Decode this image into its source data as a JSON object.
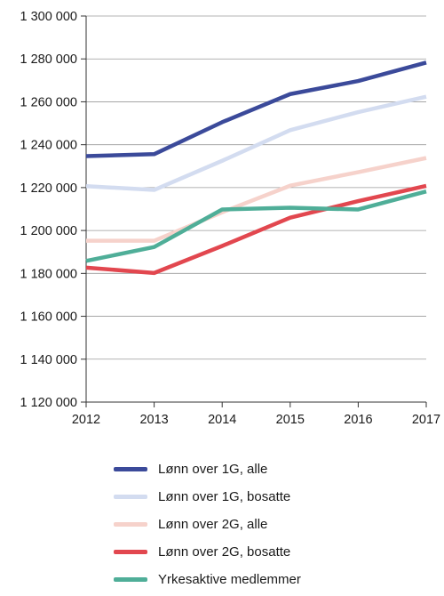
{
  "chart_data": {
    "type": "line",
    "x": [
      "2012",
      "2013",
      "2014",
      "2015",
      "2016",
      "2017"
    ],
    "ylim": [
      1120000,
      1300000
    ],
    "y_ticks": [
      1120000,
      1140000,
      1160000,
      1180000,
      1200000,
      1220000,
      1240000,
      1260000,
      1280000,
      1300000
    ],
    "y_tick_labels": [
      "1 120 000",
      "1 140 000",
      "1 160 000",
      "1 180 000",
      "1 200 000",
      "1 220 000",
      "1 240 000",
      "1 260 000",
      "1 280 000",
      "1 300 000"
    ],
    "grid": "horizontal",
    "legend_position": "bottom",
    "series": [
      {
        "name": "Lønn over 1G, alle",
        "color": "#3b4a9a",
        "values": [
          1234700,
          1235600,
          1250500,
          1263600,
          1269700,
          1278300
        ]
      },
      {
        "name": "Lønn over 1G, bosatte",
        "color": "#d3dcf0",
        "values": [
          1220700,
          1218900,
          1232500,
          1246800,
          1255200,
          1262400
        ]
      },
      {
        "name": "Lønn over 2G, alle",
        "color": "#f6d2cb",
        "values": [
          1195200,
          1195200,
          1208500,
          1220900,
          1227200,
          1233800
        ]
      },
      {
        "name": "Lønn over 2G, bosatte",
        "color": "#e2474f",
        "values": [
          1182700,
          1180200,
          1192800,
          1206000,
          1213700,
          1220800
        ]
      },
      {
        "name": "Yrkesaktive medlemmer",
        "color": "#4fae98",
        "values": [
          1185800,
          1192300,
          1209800,
          1210600,
          1209800,
          1218200
        ]
      }
    ]
  }
}
